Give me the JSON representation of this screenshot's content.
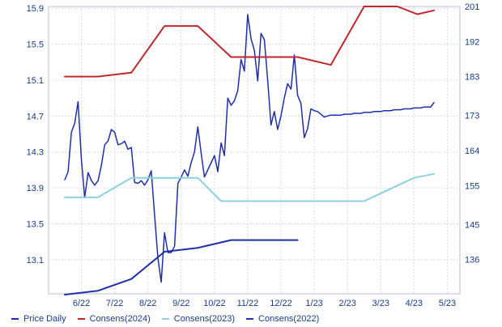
{
  "chart_data": {
    "type": "line",
    "title": "",
    "xlabel": "",
    "ylabel_left": "",
    "ylabel_right": "",
    "x_ticks": [
      "6/22",
      "7/22",
      "8/22",
      "9/22",
      "10/22",
      "11/22",
      "12/22",
      "1/23",
      "2/23",
      "3/23",
      "4/23",
      "5/23"
    ],
    "ylim_left": [
      12.72,
      15.92
    ],
    "yticks_left": [
      "13.1",
      "13.5",
      "13.9",
      "14.3",
      "14.7",
      "15.1",
      "15.5",
      "15.9"
    ],
    "ylim_right": [
      127.2,
      201.0
    ],
    "yticks_right": [
      "136",
      "145",
      "155",
      "164",
      "173",
      "183",
      "192",
      "201"
    ],
    "grid": true,
    "legend_position": "bottom",
    "series": [
      {
        "name": "Price Daily",
        "axis": "left",
        "color": "#1f2fa8",
        "x": [
          0.0,
          0.1,
          0.2,
          0.3,
          0.4,
          0.5,
          0.6,
          0.7,
          0.8,
          0.9,
          1.0,
          1.1,
          1.2,
          1.3,
          1.4,
          1.5,
          1.6,
          1.7,
          1.8,
          1.9,
          2.0,
          2.1,
          2.2,
          2.3,
          2.4,
          2.5,
          2.6,
          2.7,
          2.8,
          2.9,
          3.0,
          3.1,
          3.2,
          3.3,
          3.4,
          3.5,
          3.6,
          3.7,
          3.8,
          3.9,
          4.0,
          4.1,
          4.2,
          4.3,
          4.4,
          4.5,
          4.6,
          4.7,
          4.8,
          4.9,
          5.0,
          5.1,
          5.2,
          5.3,
          5.4,
          5.5,
          5.6,
          5.7,
          5.8,
          5.9,
          6.0,
          6.1,
          6.2,
          6.3,
          6.4,
          6.5,
          6.6,
          6.7,
          6.8,
          6.9,
          7.0,
          7.1,
          7.2,
          7.3,
          7.4,
          7.5,
          7.6,
          7.7,
          7.8,
          7.9,
          8.0,
          8.1,
          8.2,
          8.3,
          8.4,
          8.5,
          8.6,
          8.7,
          8.8,
          8.9,
          9.0,
          9.1,
          9.2,
          9.3,
          9.4,
          9.5,
          9.6,
          9.7,
          9.8,
          9.9,
          10.0,
          10.1,
          10.2,
          10.3,
          10.4,
          10.5,
          10.6,
          10.7,
          10.8,
          10.9,
          11.0,
          11.1
        ],
        "values": [
          13.99,
          14.08,
          14.52,
          14.62,
          14.86,
          14.22,
          13.79,
          14.07,
          13.98,
          13.93,
          13.98,
          14.15,
          14.38,
          14.42,
          14.55,
          14.52,
          14.38,
          14.39,
          14.42,
          14.33,
          14.35,
          13.96,
          13.95,
          13.98,
          13.93,
          13.99,
          14.09,
          13.6,
          13.12,
          12.85,
          13.4,
          13.18,
          13.18,
          13.25,
          13.95,
          14.02,
          14.1,
          14.03,
          14.18,
          14.3,
          14.58,
          14.29,
          14.02,
          14.1,
          14.18,
          14.26,
          14.08,
          14.4,
          14.26,
          14.9,
          14.82,
          14.87,
          14.98,
          15.33,
          15.2,
          15.83,
          15.56,
          15.43,
          15.09,
          15.62,
          15.55,
          15.1,
          14.6,
          14.75,
          14.55,
          14.7,
          14.9,
          15.06,
          15.0,
          15.38,
          14.93,
          14.84,
          14.46,
          14.56,
          14.78,
          14.76,
          14.75,
          14.72,
          14.69,
          14.7,
          14.71,
          14.71,
          14.71,
          14.71,
          14.72,
          14.72,
          14.72,
          14.73,
          14.73,
          14.73,
          14.74,
          14.74,
          14.74,
          14.75,
          14.75,
          14.75,
          14.76,
          14.76,
          14.76,
          14.77,
          14.77,
          14.77,
          14.78,
          14.78,
          14.78,
          14.79,
          14.79,
          14.79,
          14.8,
          14.8,
          14.8,
          14.85
        ]
      },
      {
        "name": "Consens(2024)",
        "axis": "right",
        "color": "#c0272d",
        "x": [
          0.0,
          1.0,
          2.0,
          3.0,
          4.0,
          5.0,
          6.0,
          7.0,
          8.0,
          9.0,
          10.0,
          10.6,
          11.1
        ],
        "values": [
          183,
          183,
          184,
          196,
          196,
          188,
          188,
          188,
          186,
          201,
          201,
          199,
          200
        ]
      },
      {
        "name": "Consens(2023)",
        "axis": "right",
        "color": "#8ecfe0",
        "x": [
          0.0,
          1.0,
          2.0,
          3.0,
          4.0,
          4.7,
          5.3,
          6.0,
          7.0,
          8.0,
          9.0,
          10.0,
          10.5,
          11.1
        ],
        "values": [
          152,
          152,
          157,
          157,
          157,
          151,
          151,
          151,
          151,
          151,
          151,
          155,
          157,
          158
        ]
      },
      {
        "name": "Consens(2022)",
        "axis": "right",
        "color": "#1f2fa8",
        "x": [
          0.0,
          1.0,
          2.0,
          3.0,
          4.0,
          5.0,
          6.0,
          7.0
        ],
        "values": [
          127,
          128,
          131,
          138,
          139,
          141,
          141,
          141
        ]
      }
    ]
  },
  "legend": [
    {
      "label": "Price Daily",
      "color": "#1f2fa8"
    },
    {
      "label": "Consens(2024)",
      "color": "#c0272d"
    },
    {
      "label": "Consens(2023)",
      "color": "#8ecfe0"
    },
    {
      "label": "Consens(2022)",
      "color": "#1f2fa8"
    }
  ]
}
